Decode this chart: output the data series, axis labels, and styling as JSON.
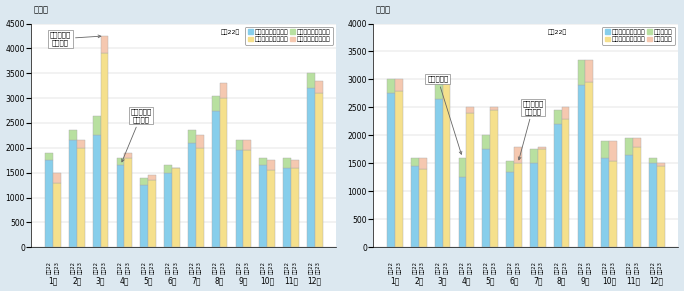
{
  "left_chart": {
    "title_y": "（人）",
    "ylim": [
      0,
      4500
    ],
    "yticks": [
      0,
      500,
      1000,
      1500,
      2000,
      2500,
      3000,
      3500,
      4000,
      4500
    ],
    "months": [
      "1月",
      "2月",
      "3月",
      "4月",
      "5月",
      "6月",
      "7月",
      "8月",
      "9月",
      "10月",
      "11月",
      "12月"
    ],
    "h22_label": "平成22",
    "h23_label": "平成23",
    "h22_with_permit": [
      1750,
      2150,
      2250,
      1650,
      1250,
      1500,
      2100,
      2750,
      1950,
      1650,
      1600,
      3200
    ],
    "h22_without_permit": [
      150,
      200,
      400,
      150,
      150,
      150,
      250,
      300,
      200,
      150,
      200,
      300
    ],
    "h23_with_permit": [
      1300,
      2000,
      3900,
      1800,
      1350,
      1600,
      2000,
      3000,
      1950,
      1550,
      1600,
      3100
    ],
    "h23_without_permit": [
      200,
      150,
      350,
      100,
      100,
      0,
      250,
      300,
      200,
      200,
      150,
      250
    ],
    "color_h22_with": "#87CEEB",
    "color_h22_without": "#B8E0A0",
    "color_h23_with": "#F5E08C",
    "color_h23_without": "#F5C8B0",
    "legend_header_h22": "平成22年",
    "legend_header_h23": "平成23年",
    "legend_with": "再入国許可がある者",
    "legend_without": "再入国許可がない者",
    "ann1_text": "再入国許可\nがない者",
    "ann2_text": "再入国許可\nがある者"
  },
  "right_chart": {
    "title_y": "（人）",
    "ylim": [
      0,
      4000
    ],
    "yticks": [
      0,
      500,
      1000,
      1500,
      2000,
      2500,
      3000,
      3500,
      4000
    ],
    "months": [
      "1月",
      "2月",
      "3月",
      "4月",
      "5月",
      "6月",
      "7月",
      "8月",
      "9月",
      "10月",
      "11月",
      "12月"
    ],
    "h22_label": "平成22",
    "h23_label": "平成23",
    "h22_with_permit": [
      2750,
      1450,
      2650,
      1250,
      1750,
      1350,
      1500,
      2200,
      2900,
      1600,
      1650,
      1500
    ],
    "h22_new_entry": [
      250,
      150,
      350,
      350,
      250,
      200,
      250,
      250,
      450,
      300,
      300,
      100
    ],
    "h23_with_permit": [
      2800,
      1400,
      3000,
      2400,
      2450,
      1500,
      1750,
      2300,
      2950,
      1550,
      1800,
      1450
    ],
    "h23_new_entry": [
      200,
      200,
      0,
      100,
      50,
      300,
      50,
      200,
      400,
      350,
      150,
      50
    ],
    "color_h22_with": "#87CEEB",
    "color_h22_new": "#B8E0A0",
    "color_h23_with": "#F5E08C",
    "color_h23_new": "#F5C8B0",
    "legend_header_h22": "平成22年",
    "legend_header_h23": "平成23年",
    "legend_with": "再入国許可がある者",
    "legend_new": "新規入国者",
    "ann1_text": "新規入国者",
    "ann2_text": "再入国許可\nがある者"
  },
  "bg_color": "#dce8f0",
  "plot_bg_color": "#ffffff",
  "bar_width": 0.33
}
